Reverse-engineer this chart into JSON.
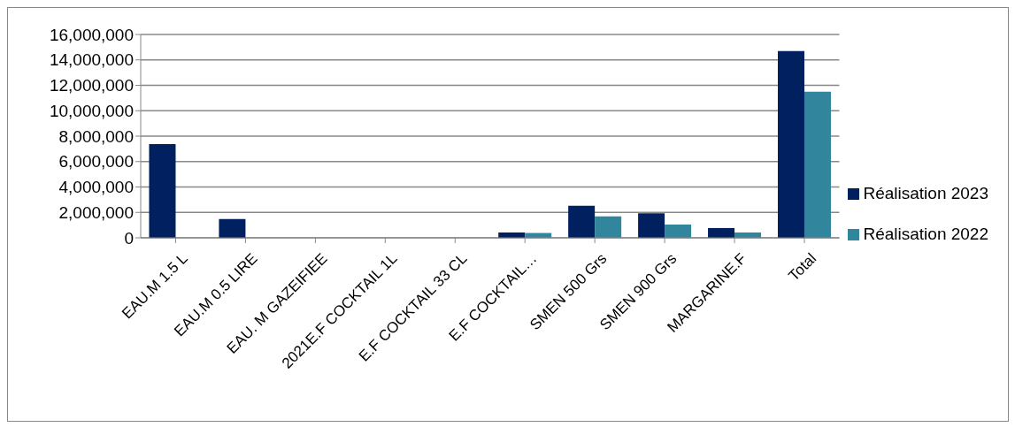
{
  "chart_data": {
    "type": "bar",
    "categories": [
      "EAU.M 1.5 L",
      "EAU.M 0.5 LIRE",
      "EAU. M GAZEIFIEE",
      "2021E.F COCKTAIL 1L",
      "E.F COCKTAIL 33 CL",
      "E.F COCKTAIL…",
      "SMEN 500 Grs",
      "SMEN 900 Grs",
      "MARGARINE.F",
      "Total"
    ],
    "series": [
      {
        "name": "Réalisation 2023",
        "color": "#002060",
        "values": [
          7370000,
          1470000,
          null,
          0,
          0,
          420000,
          2530000,
          1930000,
          770000,
          14700000
        ]
      },
      {
        "name": "Réalisation 2022",
        "color": "#31859c",
        "values": [
          0,
          0,
          0,
          0,
          0,
          380000,
          1680000,
          1050000,
          420000,
          11500000
        ]
      }
    ],
    "ylim": [
      0,
      16000000
    ],
    "yticks": [
      {
        "value": 0,
        "label": "0"
      },
      {
        "value": 2000000,
        "label": "2,000,000"
      },
      {
        "value": 4000000,
        "label": "4,000,000"
      },
      {
        "value": 6000000,
        "label": "6,000,000"
      },
      {
        "value": 8000000,
        "label": "8,000,000"
      },
      {
        "value": 10000000,
        "label": "10,000,000"
      },
      {
        "value": 12000000,
        "label": "12,000,000"
      },
      {
        "value": 14000000,
        "label": "14,000,000"
      },
      {
        "value": 16000000,
        "label": "16,000,000"
      }
    ],
    "grid": "y",
    "legend": "right"
  }
}
